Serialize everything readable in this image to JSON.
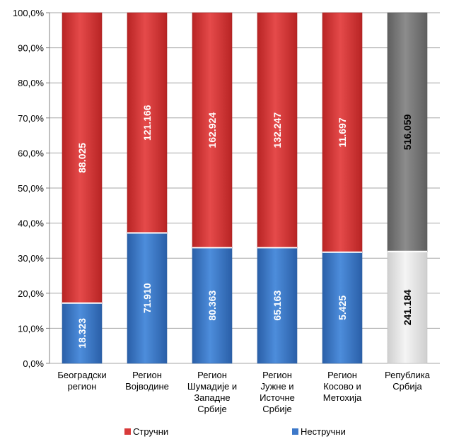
{
  "chart_data": {
    "type": "bar",
    "stacked": true,
    "normalized": true,
    "categories": [
      [
        "Београдски",
        "регион"
      ],
      [
        "Регион",
        "Војводине"
      ],
      [
        "Регион",
        "Шумадије и",
        "Западне",
        "Србије"
      ],
      [
        "Регион",
        "Јужне и",
        "Источне",
        "Србије"
      ],
      [
        "Регион",
        "Косово и",
        "Метохија"
      ],
      [
        "Република",
        "Србија"
      ]
    ],
    "series": [
      {
        "name": "Нестручни",
        "values": [
          18323,
          71910,
          80363,
          65163,
          5425,
          241184
        ],
        "labels": [
          "18.323",
          "71.910",
          "80.363",
          "65.163",
          "5.425",
          "241.184"
        ],
        "shares": [
          17.2,
          37.2,
          33.0,
          33.0,
          31.7,
          31.9
        ]
      },
      {
        "name": "Стручни",
        "values": [
          88025,
          121166,
          162924,
          132247,
          11697,
          516059
        ],
        "labels": [
          "88.025",
          "121.166",
          "162.924",
          "132.247",
          "11.697",
          "516.059"
        ],
        "shares": [
          82.8,
          62.8,
          67.0,
          67.0,
          68.3,
          68.1
        ]
      }
    ],
    "y_ticks": [
      "0,0%",
      "10,0%",
      "20,0%",
      "30,0%",
      "40,0%",
      "50,0%",
      "60,0%",
      "70,0%",
      "80,0%",
      "90,0%",
      "100,0%"
    ],
    "ylim": [
      0,
      100
    ],
    "grid": true,
    "legend": "bottom",
    "colors": {
      "stručni": "#d83a3a",
      "nestručni": "#3d78c9",
      "total_top": "#7f7f7f",
      "total_bottom": "#e4e4e4",
      "grid": "#a6a6a6"
    }
  }
}
